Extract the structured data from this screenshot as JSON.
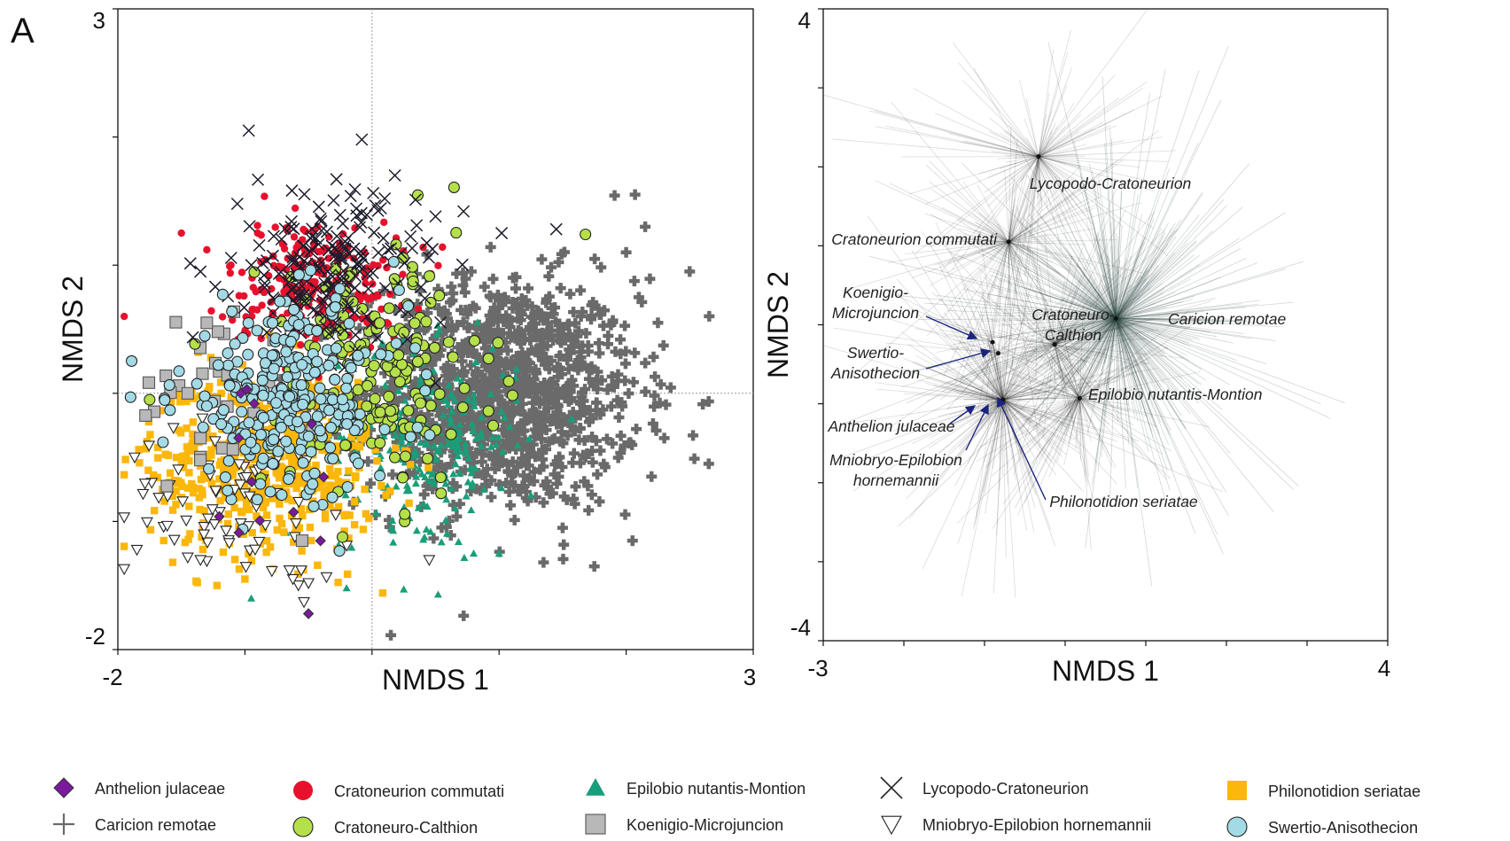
{
  "panel_letter": "A",
  "chart_data": [
    {
      "type": "scatter",
      "xlabel": "NMDS 1",
      "ylabel": "NMDS 2",
      "xlim": [
        -2,
        3
      ],
      "ylim": [
        -2,
        3
      ],
      "x_tick_labels": [
        "-2",
        "3"
      ],
      "y_tick_labels": [
        "3",
        "-2"
      ],
      "reference_lines": {
        "x": 0,
        "y": 0
      },
      "series": [
        {
          "name": "Anthelion julaceae",
          "marker": "diamond",
          "color": "#7a1a9c",
          "center": [
            -0.95,
            -0.55
          ],
          "spread": [
            0.35,
            0.3
          ],
          "count": 12,
          "points": [
            [
              -0.5,
              -1.72
            ]
          ]
        },
        {
          "name": "Caricion remotae",
          "marker": "plus",
          "color": "#6a6a6a",
          "center": [
            1.0,
            0.0
          ],
          "spread": [
            0.55,
            0.45
          ],
          "count": 1150,
          "points": [
            [
              2.07,
              1.55
            ],
            [
              2.15,
              1.3
            ],
            [
              2.0,
              1.1
            ],
            [
              2.5,
              0.95
            ],
            [
              2.1,
              0.75
            ],
            [
              2.25,
              0.55
            ],
            [
              2.65,
              -0.55
            ],
            [
              2.3,
              -0.35
            ],
            [
              2.2,
              -0.65
            ],
            [
              1.5,
              -1.05
            ],
            [
              1.35,
              -1.32
            ],
            [
              2.05,
              -1.15
            ]
          ]
        },
        {
          "name": "Cratoneurion commutati",
          "marker": "circle",
          "color": "#e8112d",
          "center": [
            -0.45,
            0.85
          ],
          "spread": [
            0.35,
            0.25
          ],
          "count": 230,
          "points": [
            [
              -1.97,
              0.6
            ],
            [
              -1.3,
              1.12
            ],
            [
              -1.5,
              1.25
            ],
            [
              -0.9,
              1.25
            ]
          ]
        },
        {
          "name": "Cratoneuro-Calthion",
          "marker": "circle-outline",
          "color": "#b5e04a",
          "center": [
            0.05,
            0.15
          ],
          "spread": [
            0.45,
            0.5
          ],
          "count": 170,
          "points": [
            [
              -1.75,
              -0.05
            ]
          ]
        },
        {
          "name": "Epilobio nutantis-Montion",
          "marker": "triangle",
          "color": "#1a9e7a",
          "center": [
            0.45,
            -0.35
          ],
          "spread": [
            0.35,
            0.35
          ],
          "count": 240,
          "points": [
            [
              -0.95,
              -1.6
            ],
            [
              -0.2,
              -1.52
            ],
            [
              0.25,
              -1.53
            ],
            [
              0.52,
              -1.57
            ],
            [
              0.8,
              -1.25
            ],
            [
              1.0,
              -1.25
            ]
          ]
        },
        {
          "name": "Koenigio-Microjuncion",
          "marker": "square-outline",
          "color": "#b8b8b8",
          "center": [
            -1.25,
            0.0
          ],
          "spread": [
            0.3,
            0.35
          ],
          "count": 30,
          "points": [
            [
              -1.3,
              0.55
            ],
            [
              -1.45,
              0.0
            ],
            [
              -1.35,
              -0.35
            ],
            [
              -0.55,
              -1.15
            ]
          ]
        },
        {
          "name": "Lycopodo-Cratoneurion",
          "marker": "x",
          "color": "#1c1c2a",
          "center": [
            -0.35,
            0.95
          ],
          "spread": [
            0.35,
            0.3
          ],
          "count": 190,
          "points": [
            [
              -0.97,
              2.05
            ],
            [
              -0.08,
              1.98
            ],
            [
              -0.28,
              1.67
            ],
            [
              0.18,
              1.7
            ],
            [
              0.1,
              1.52
            ],
            [
              0.5,
              1.38
            ],
            [
              0.72,
              1.42
            ],
            [
              1.45,
              1.28
            ],
            [
              1.02,
              1.25
            ],
            [
              -1.35,
              0.95
            ],
            [
              -0.95,
              1.0
            ],
            [
              0.5,
              0.08
            ]
          ]
        },
        {
          "name": "Mniobryo-Epilobion hornemannii",
          "marker": "triangle-down-outline",
          "color": "#ffffff",
          "center": [
            -1.05,
            -0.85
          ],
          "spread": [
            0.45,
            0.3
          ],
          "count": 70,
          "points": [
            [
              -1.85,
              -1.22
            ],
            [
              -1.35,
              -1.3
            ],
            [
              -1.45,
              -1.28
            ],
            [
              -0.65,
              -1.38
            ],
            [
              -0.5,
              -1.48
            ],
            [
              0.45,
              -1.3
            ]
          ]
        },
        {
          "name": "Philonotidion seriatae",
          "marker": "square",
          "color": "#fbb70b",
          "center": [
            -0.85,
            -0.55
          ],
          "spread": [
            0.45,
            0.35
          ],
          "count": 520,
          "points": [
            [
              -1.65,
              -0.75
            ],
            [
              -1.22,
              -1.5
            ],
            [
              -1.0,
              -1.45
            ],
            [
              -0.8,
              -1.2
            ]
          ]
        },
        {
          "name": "Swertio-Anisothecion",
          "marker": "circle-outline",
          "color": "#a3dae5",
          "center": [
            -0.65,
            -0.05
          ],
          "spread": [
            0.45,
            0.38
          ],
          "count": 260,
          "points": [
            [
              -1.9,
              -0.03
            ],
            [
              -1.3,
              -0.1
            ]
          ]
        }
      ],
      "legend_position": "bottom"
    },
    {
      "type": "scatter",
      "xlabel": "NMDS 1",
      "ylabel": "NMDS 2",
      "xlim": [
        -3,
        4
      ],
      "ylim": [
        -4,
        4
      ],
      "x_tick_labels": [
        "-3",
        "4"
      ],
      "y_tick_labels": [
        "4",
        "-4"
      ],
      "centroids": [
        {
          "name": "Lycopodo-Cratoneurion",
          "x": -0.33,
          "y": 2.13,
          "lines": 130,
          "color": "#222"
        },
        {
          "name": "Cratoneurion commutati",
          "x": -0.7,
          "y": 1.05,
          "lines": 130,
          "color": "#222"
        },
        {
          "name": "Caricion remotae",
          "x": 0.63,
          "y": 0.08,
          "lines": 420,
          "color": "#2e4a46"
        },
        {
          "name": "Cratoneuro-Calthion",
          "x": -0.13,
          "y": -0.25,
          "lines": 110,
          "color": "#222"
        },
        {
          "name": "Epilobio nutantis-Montion",
          "x": 0.18,
          "y": -0.93,
          "lines": 120,
          "color": "#222"
        },
        {
          "name": "Philonotidion seriatae",
          "x": -0.77,
          "y": -0.95,
          "lines": 200,
          "color": "#222"
        },
        {
          "name": "Koenigio-Microjuncion",
          "x": -0.9,
          "y": -0.22,
          "lines": 15,
          "color": "#222"
        },
        {
          "name": "Swertio-Anisothecion",
          "x": -0.83,
          "y": -0.36,
          "lines": 30,
          "color": "#222"
        },
        {
          "name": "Anthelion julaceae",
          "x": -0.8,
          "y": -1.0,
          "lines": 10,
          "color": "#222"
        },
        {
          "name": "Mniobryo-Epilobion hornemannii",
          "x": -0.78,
          "y": -0.98,
          "lines": 25,
          "color": "#222"
        }
      ],
      "annotations": [
        {
          "lines": [
            "Lycopodo-Cratoneurion"
          ],
          "anchor": "middle"
        },
        {
          "lines": [
            "Cratoneurion commutati"
          ],
          "anchor": "end"
        },
        {
          "lines": [
            "Caricion remotae"
          ],
          "anchor": "start"
        },
        {
          "lines": [
            "Cratoneuro-",
            "Calthion"
          ],
          "anchor": "middle"
        },
        {
          "lines": [
            "Epilobio nutantis-Montion"
          ],
          "anchor": "start"
        },
        {
          "lines": [
            "Koenigio-",
            "Microjuncion"
          ],
          "anchor": "middle"
        },
        {
          "lines": [
            "Swertio-",
            "Anisothecion"
          ],
          "anchor": "middle"
        },
        {
          "lines": [
            "Anthelion julaceae"
          ],
          "anchor": "middle"
        },
        {
          "lines": [
            "Mniobryo-Epilobion",
            "hornemannii"
          ],
          "anchor": "middle"
        },
        {
          "lines": [
            "Philonotidion seriatae"
          ],
          "anchor": "middle"
        }
      ]
    }
  ]
}
